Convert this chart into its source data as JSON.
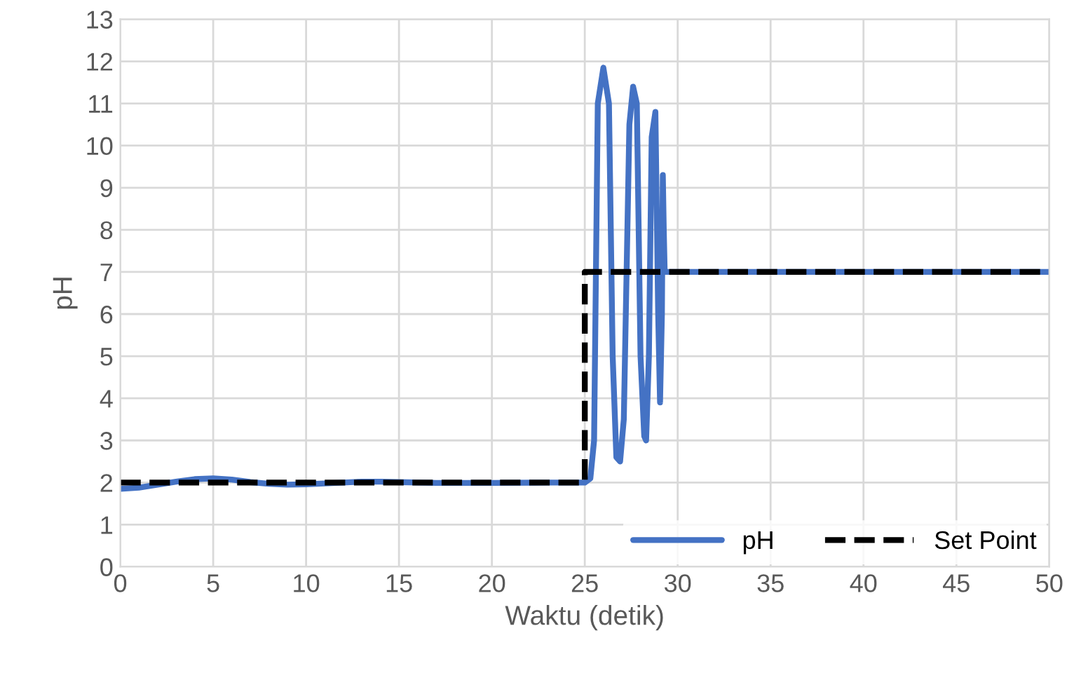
{
  "chart_data": {
    "type": "line",
    "xlabel": "Waktu (detik)",
    "ylabel": "pH",
    "xlim": [
      0,
      50
    ],
    "ylim": [
      0,
      13
    ],
    "xticks": [
      0,
      5,
      10,
      15,
      20,
      25,
      30,
      35,
      40,
      45,
      50
    ],
    "yticks": [
      0,
      1,
      2,
      3,
      4,
      5,
      6,
      7,
      8,
      9,
      10,
      11,
      12,
      13
    ],
    "grid": true,
    "legend": "bottom right",
    "series": [
      {
        "name": "pH",
        "color": "#4472c4",
        "line_style": "solid",
        "x": [
          0,
          1,
          2,
          3,
          4,
          5,
          6,
          7,
          8,
          9,
          10,
          11,
          12,
          13,
          14,
          15,
          17,
          20,
          23,
          25,
          25.3,
          25.5,
          25.7,
          26.0,
          26.3,
          26.5,
          26.7,
          26.9,
          27.1,
          27.4,
          27.6,
          27.8,
          28.0,
          28.2,
          28.3,
          28.45,
          28.6,
          28.8,
          28.95,
          29.05,
          29.15,
          29.2,
          29.25,
          29.3,
          29.5,
          30,
          35,
          40,
          45,
          50
        ],
        "values": [
          1.85,
          1.88,
          1.95,
          2.02,
          2.08,
          2.1,
          2.07,
          2.01,
          1.97,
          1.95,
          1.96,
          1.98,
          2.0,
          2.02,
          2.02,
          2.01,
          1.99,
          1.99,
          2.0,
          2.0,
          2.1,
          3.0,
          11.0,
          11.85,
          11.0,
          5.0,
          2.6,
          2.5,
          3.5,
          10.5,
          11.4,
          11.0,
          5.0,
          3.1,
          3.0,
          5.0,
          10.2,
          10.8,
          6.0,
          3.9,
          6.0,
          9.3,
          8.0,
          7.0,
          7.0,
          7.0,
          7.0,
          7.0,
          7.0,
          7.0
        ]
      },
      {
        "name": "Set Point",
        "color": "#000000",
        "line_style": "dashed",
        "x": [
          0,
          25,
          25,
          50
        ],
        "values": [
          2,
          2,
          7,
          7
        ]
      }
    ]
  }
}
